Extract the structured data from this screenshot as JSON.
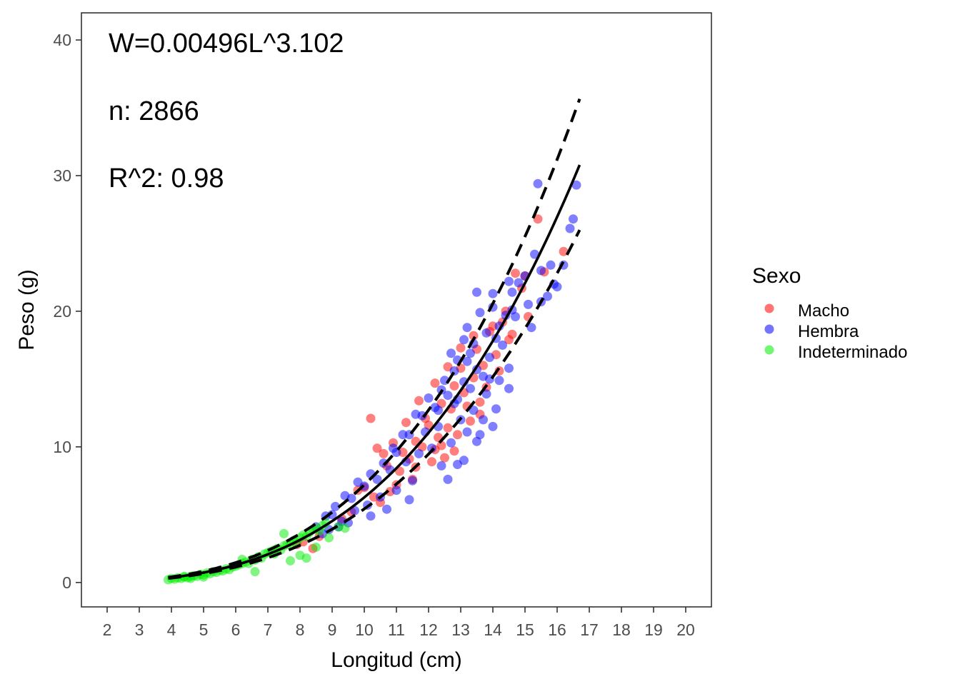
{
  "chart_data": {
    "type": "scatter",
    "xlabel": "Longitud (cm)",
    "ylabel": "Peso (g)",
    "xlim": [
      1.2,
      20.8
    ],
    "ylim": [
      -1.8,
      42.0
    ],
    "x_ticks": [
      "2",
      "3",
      "4",
      "5",
      "6",
      "7",
      "8",
      "9",
      "10",
      "11",
      "12",
      "13",
      "14",
      "15",
      "16",
      "17",
      "18",
      "19",
      "20"
    ],
    "y_ticks": [
      "0",
      "10",
      "20",
      "30",
      "40"
    ],
    "grid": false,
    "annotations": [
      "W=0.00496L^3.102",
      "n: 2866",
      "R^2: 0.98"
    ],
    "model": {
      "a": 0.00496,
      "b": 3.102,
      "n": 2866,
      "r2": 0.98,
      "x_range": [
        3.9,
        16.7
      ]
    },
    "bounds": {
      "upper": {
        "a": 0.00546,
        "b": 3.12,
        "x_range": [
          3.9,
          16.7
        ]
      },
      "lower": {
        "a": 0.00478,
        "b": 3.055,
        "x_range": [
          3.9,
          16.7
        ]
      }
    },
    "legend": {
      "title": "Sexo",
      "position": "right",
      "entries": [
        {
          "label": "Macho",
          "color": "#ff0000"
        },
        {
          "label": "Hembra",
          "color": "#0000ff"
        },
        {
          "label": "Indeterminado",
          "color": "#00ee00"
        }
      ]
    },
    "series": [
      {
        "name": "Macho",
        "color": "#ff0000",
        "points": [
          [
            10.2,
            12.1
          ],
          [
            15.4,
            26.8
          ],
          [
            16.2,
            24.4
          ],
          [
            15.0,
            22.6
          ],
          [
            15.6,
            22.9
          ],
          [
            14.7,
            22.8
          ],
          [
            14.9,
            21.7
          ],
          [
            15.1,
            19.6
          ],
          [
            10.6,
            9.5
          ],
          [
            10.9,
            10.3
          ],
          [
            11.3,
            11.8
          ],
          [
            11.6,
            10.4
          ],
          [
            11.9,
            12.1
          ],
          [
            12.2,
            9.8
          ],
          [
            12.4,
            13.2
          ],
          [
            12.6,
            11.4
          ],
          [
            12.8,
            14.5
          ],
          [
            13.0,
            15.8
          ],
          [
            13.2,
            13.0
          ],
          [
            13.5,
            17.2
          ],
          [
            13.7,
            16.0
          ],
          [
            13.9,
            18.5
          ],
          [
            14.1,
            16.8
          ],
          [
            14.3,
            19.2
          ],
          [
            14.5,
            17.9
          ],
          [
            11.1,
            8.2
          ],
          [
            11.4,
            9.1
          ],
          [
            11.8,
            10.0
          ],
          [
            12.0,
            11.6
          ],
          [
            12.3,
            10.7
          ],
          [
            12.7,
            12.8
          ],
          [
            13.1,
            14.0
          ],
          [
            13.4,
            15.1
          ],
          [
            13.8,
            14.4
          ],
          [
            14.0,
            18.9
          ],
          [
            14.4,
            20.0
          ],
          [
            10.7,
            8.6
          ],
          [
            11.0,
            7.2
          ],
          [
            11.5,
            7.6
          ],
          [
            12.1,
            8.9
          ],
          [
            12.5,
            9.2
          ],
          [
            12.9,
            10.9
          ],
          [
            13.3,
            11.9
          ],
          [
            13.6,
            13.3
          ],
          [
            14.2,
            15.6
          ],
          [
            9.8,
            6.8
          ],
          [
            10.0,
            7.0
          ],
          [
            10.3,
            6.3
          ],
          [
            10.5,
            5.9
          ],
          [
            10.8,
            6.7
          ],
          [
            9.3,
            4.7
          ],
          [
            9.6,
            5.2
          ],
          [
            11.7,
            13.4
          ],
          [
            12.2,
            14.7
          ],
          [
            12.6,
            15.9
          ],
          [
            13.0,
            17.3
          ],
          [
            13.4,
            18.2
          ],
          [
            11.2,
            9.6
          ],
          [
            10.4,
            9.9
          ],
          [
            11.6,
            8.5
          ],
          [
            12.4,
            10.1
          ],
          [
            12.8,
            9.7
          ],
          [
            13.6,
            12.4
          ],
          [
            14.6,
            18.3
          ],
          [
            8.1,
            3.0
          ],
          [
            8.6,
            3.4
          ],
          [
            7.9,
            2.8
          ],
          [
            8.4,
            2.5
          ]
        ]
      },
      {
        "name": "Hembra",
        "color": "#0000ff",
        "points": [
          [
            15.4,
            29.4
          ],
          [
            16.6,
            29.3
          ],
          [
            16.5,
            26.8
          ],
          [
            16.4,
            26.1
          ],
          [
            15.8,
            23.4
          ],
          [
            15.5,
            23.0
          ],
          [
            15.3,
            24.2
          ],
          [
            15.7,
            21.1
          ],
          [
            16.0,
            21.8
          ],
          [
            14.6,
            21.4
          ],
          [
            15.1,
            20.5
          ],
          [
            15.2,
            18.8
          ],
          [
            13.5,
            21.4
          ],
          [
            14.0,
            20.3
          ],
          [
            14.8,
            22.1
          ],
          [
            13.2,
            18.8
          ],
          [
            13.6,
            19.9
          ],
          [
            14.4,
            19.7
          ],
          [
            12.9,
            16.4
          ],
          [
            13.3,
            16.9
          ],
          [
            14.1,
            18.0
          ],
          [
            14.7,
            19.6
          ],
          [
            12.5,
            14.9
          ],
          [
            12.8,
            13.2
          ],
          [
            13.1,
            14.8
          ],
          [
            13.5,
            15.7
          ],
          [
            13.9,
            16.6
          ],
          [
            14.3,
            17.5
          ],
          [
            11.8,
            12.3
          ],
          [
            12.2,
            12.9
          ],
          [
            12.6,
            13.8
          ],
          [
            13.0,
            12.0
          ],
          [
            13.4,
            12.7
          ],
          [
            13.8,
            13.9
          ],
          [
            14.2,
            14.9
          ],
          [
            11.4,
            10.9
          ],
          [
            11.9,
            11.1
          ],
          [
            12.3,
            11.5
          ],
          [
            12.7,
            10.3
          ],
          [
            13.2,
            11.1
          ],
          [
            13.7,
            12.0
          ],
          [
            11.0,
            9.6
          ],
          [
            10.6,
            8.8
          ],
          [
            10.2,
            8.0
          ],
          [
            9.8,
            7.4
          ],
          [
            9.4,
            6.4
          ],
          [
            9.1,
            5.6
          ],
          [
            8.8,
            4.9
          ],
          [
            9.0,
            5.0
          ],
          [
            9.6,
            6.2
          ],
          [
            10.0,
            7.1
          ],
          [
            10.4,
            7.6
          ],
          [
            10.8,
            8.3
          ],
          [
            11.3,
            8.9
          ],
          [
            11.7,
            9.5
          ],
          [
            12.1,
            9.9
          ],
          [
            12.4,
            8.6
          ],
          [
            11.5,
            7.5
          ],
          [
            11.0,
            6.8
          ],
          [
            10.5,
            6.3
          ],
          [
            10.1,
            5.7
          ],
          [
            9.7,
            5.3
          ],
          [
            9.3,
            4.5
          ],
          [
            12.9,
            8.7
          ],
          [
            13.5,
            10.4
          ],
          [
            14.0,
            11.5
          ],
          [
            13.9,
            15.0
          ],
          [
            14.5,
            15.8
          ],
          [
            12.0,
            13.6
          ],
          [
            12.4,
            14.2
          ],
          [
            12.8,
            15.6
          ],
          [
            13.2,
            16.3
          ],
          [
            11.6,
            12.4
          ],
          [
            11.2,
            10.9
          ],
          [
            10.9,
            9.9
          ],
          [
            13.4,
            17.6
          ],
          [
            13.8,
            18.4
          ],
          [
            14.2,
            18.9
          ],
          [
            14.6,
            20.1
          ],
          [
            15.0,
            22.6
          ],
          [
            15.5,
            20.7
          ],
          [
            15.9,
            22.0
          ],
          [
            16.2,
            23.4
          ],
          [
            12.7,
            16.9
          ],
          [
            13.1,
            17.9
          ],
          [
            14.0,
            21.3
          ],
          [
            14.5,
            22.2
          ],
          [
            9.5,
            4.4
          ],
          [
            10.2,
            4.9
          ],
          [
            10.7,
            5.4
          ],
          [
            11.4,
            6.1
          ],
          [
            12.6,
            7.6
          ],
          [
            13.1,
            9.0
          ],
          [
            13.6,
            10.9
          ],
          [
            14.1,
            12.8
          ],
          [
            14.5,
            14.3
          ],
          [
            8.9,
            3.9
          ],
          [
            9.2,
            4.1
          ],
          [
            8.5,
            4.1
          ],
          [
            8.7,
            3.6
          ],
          [
            12.3,
            12.7
          ],
          [
            12.9,
            13.5
          ],
          [
            13.3,
            14.3
          ],
          [
            13.7,
            15.2
          ]
        ]
      },
      {
        "name": "Indeterminado",
        "color": "#00ee00",
        "points": [
          [
            3.9,
            0.2
          ],
          [
            4.0,
            0.3
          ],
          [
            4.1,
            0.25
          ],
          [
            4.2,
            0.35
          ],
          [
            4.3,
            0.3
          ],
          [
            4.4,
            0.4
          ],
          [
            4.5,
            0.35
          ],
          [
            4.6,
            0.45
          ],
          [
            4.7,
            0.5
          ],
          [
            4.8,
            0.45
          ],
          [
            4.9,
            0.6
          ],
          [
            5.0,
            0.55
          ],
          [
            5.1,
            0.7
          ],
          [
            5.2,
            0.65
          ],
          [
            5.3,
            0.8
          ],
          [
            5.4,
            0.75
          ],
          [
            5.5,
            0.9
          ],
          [
            5.6,
            0.85
          ],
          [
            5.7,
            1.0
          ],
          [
            5.8,
            0.95
          ],
          [
            5.9,
            1.15
          ],
          [
            6.0,
            1.2
          ],
          [
            6.1,
            1.3
          ],
          [
            6.2,
            1.4
          ],
          [
            6.3,
            1.5
          ],
          [
            6.4,
            1.4
          ],
          [
            6.5,
            1.7
          ],
          [
            6.6,
            1.65
          ],
          [
            6.7,
            1.9
          ],
          [
            6.8,
            1.8
          ],
          [
            6.9,
            2.1
          ],
          [
            7.0,
            2.2
          ],
          [
            7.1,
            2.3
          ],
          [
            7.2,
            2.1
          ],
          [
            7.3,
            2.5
          ],
          [
            7.4,
            2.4
          ],
          [
            7.5,
            2.7
          ],
          [
            7.6,
            2.8
          ],
          [
            7.7,
            2.9
          ],
          [
            7.8,
            3.1
          ],
          [
            7.9,
            3.0
          ],
          [
            8.0,
            3.3
          ],
          [
            8.1,
            3.5
          ],
          [
            8.2,
            3.4
          ],
          [
            8.3,
            3.7
          ],
          [
            8.4,
            3.9
          ],
          [
            8.5,
            4.0
          ],
          [
            8.6,
            3.8
          ],
          [
            8.7,
            4.2
          ],
          [
            8.8,
            4.4
          ],
          [
            8.9,
            3.3
          ],
          [
            9.2,
            4.1
          ],
          [
            9.4,
            4.0
          ],
          [
            8.2,
            1.8
          ],
          [
            7.7,
            1.6
          ],
          [
            6.6,
            0.8
          ],
          [
            5.0,
            0.4
          ],
          [
            4.6,
            0.3
          ],
          [
            6.2,
            1.7
          ],
          [
            7.5,
            3.6
          ],
          [
            8.0,
            2.0
          ],
          [
            8.5,
            2.6
          ],
          [
            7.2,
            2.4
          ],
          [
            4.4,
            0.45
          ]
        ]
      }
    ]
  }
}
